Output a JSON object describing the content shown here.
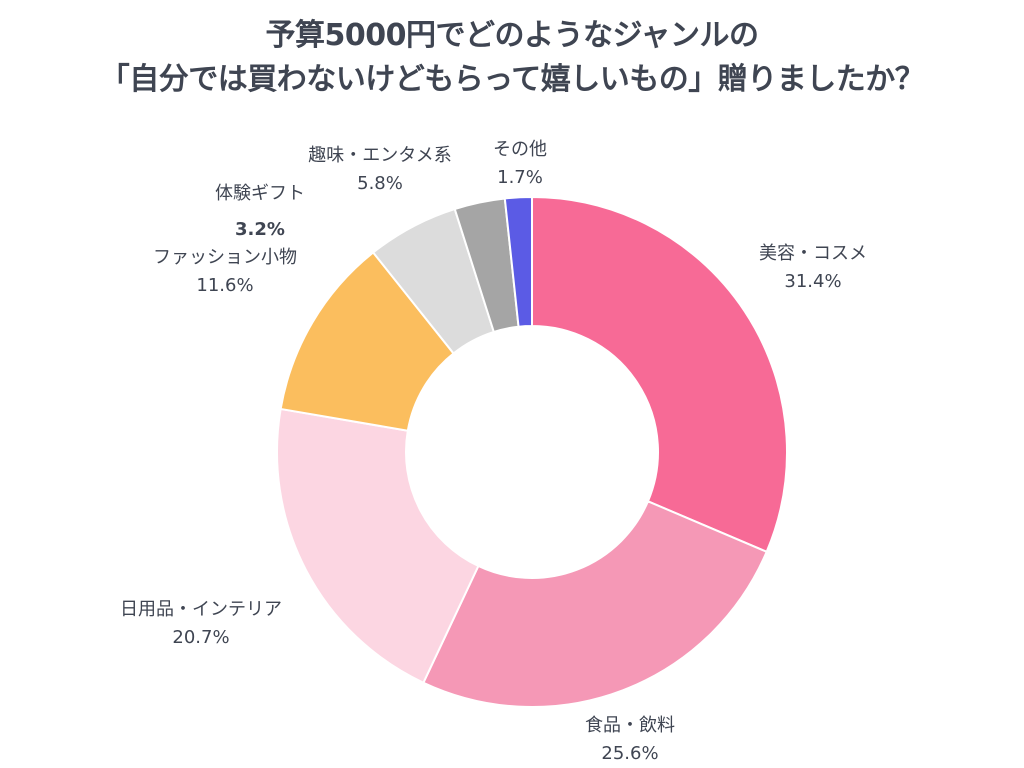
{
  "title": {
    "line1": "予算5000円でどのようなジャンルの",
    "line2": "「自分では買わないけどもらって嬉しいもの」贈りましたか？"
  },
  "chart_data": {
    "type": "pie",
    "donut": true,
    "categories": [
      "美容・コスメ",
      "食品・飲料",
      "日用品・インテリア",
      "ファッション小物",
      "趣味・エンタメ系",
      "体験ギフト",
      "その他"
    ],
    "values": [
      31.4,
      25.6,
      20.7,
      11.6,
      5.8,
      3.2,
      1.7
    ],
    "value_labels": [
      "31.4%",
      "25.6%",
      "20.7%",
      "11.6%",
      "5.8%",
      "3.2%",
      "1.7%"
    ],
    "colors": [
      "#f76a96",
      "#f598b6",
      "#fcd6e2",
      "#fbbe5e",
      "#dcdcdc",
      "#a5a5a5",
      "#5b5be5"
    ],
    "start": "12 o'clock",
    "direction": "clockwise",
    "legend": "none"
  }
}
